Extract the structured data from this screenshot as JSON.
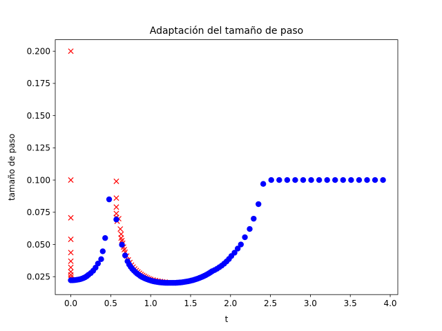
{
  "chart_data": {
    "type": "scatter",
    "title": "Adaptación del tamaño de paso",
    "xlabel": "t",
    "ylabel": "tamaño de paso",
    "xlim": [
      -0.195,
      4.095
    ],
    "ylim": [
      0.0111,
      0.2089
    ],
    "xticks": [
      0.0,
      0.5,
      1.0,
      1.5,
      2.0,
      2.5,
      3.0,
      3.5,
      4.0
    ],
    "xtick_labels": [
      "0.0",
      "0.5",
      "1.0",
      "1.5",
      "2.0",
      "2.5",
      "3.0",
      "3.5",
      "4.0"
    ],
    "yticks": [
      0.025,
      0.05,
      0.075,
      0.1,
      0.125,
      0.15,
      0.175,
      0.2
    ],
    "ytick_labels": [
      "0.025",
      "0.050",
      "0.075",
      "0.100",
      "0.125",
      "0.150",
      "0.175",
      "0.200"
    ],
    "grid": false,
    "colors": {
      "accepted": "#0000ff",
      "rejected": "#ff0000"
    },
    "series": [
      {
        "marker": "x",
        "color": "#ff0000",
        "points": [
          [
            0.0,
            0.2
          ],
          [
            0.0,
            0.1
          ],
          [
            0.0,
            0.0707
          ],
          [
            0.0,
            0.054
          ],
          [
            0.0,
            0.0437
          ],
          [
            0.0,
            0.037
          ],
          [
            0.0,
            0.0322
          ],
          [
            0.0,
            0.0288
          ],
          [
            0.0,
            0.0264
          ],
          [
            0.0,
            0.0245
          ],
          [
            0.0,
            0.0232
          ],
          [
            0.01,
            0.0226
          ],
          [
            0.57,
            0.099
          ],
          [
            0.57,
            0.086
          ],
          [
            0.57,
            0.079
          ],
          [
            0.57,
            0.074
          ],
          [
            0.57,
            0.071
          ],
          [
            0.58,
            0.068
          ],
          [
            0.6,
            0.07
          ],
          [
            0.62,
            0.062
          ],
          [
            0.63,
            0.058
          ],
          [
            0.63,
            0.055
          ],
          [
            0.64,
            0.053
          ],
          [
            0.65,
            0.051
          ],
          [
            0.66,
            0.048
          ],
          [
            0.67,
            0.046
          ],
          [
            0.68,
            0.044
          ],
          [
            0.7,
            0.041
          ],
          [
            0.72,
            0.038
          ],
          [
            0.74,
            0.036
          ],
          [
            0.76,
            0.034
          ],
          [
            0.78,
            0.0325
          ],
          [
            0.8,
            0.031
          ],
          [
            0.82,
            0.0298
          ],
          [
            0.84,
            0.0287
          ],
          [
            0.86,
            0.0277
          ],
          [
            0.88,
            0.0268
          ],
          [
            0.9,
            0.026
          ],
          [
            0.92,
            0.0253
          ],
          [
            0.94,
            0.0246
          ],
          [
            0.96,
            0.024
          ],
          [
            0.98,
            0.0234
          ],
          [
            1.0,
            0.0229
          ],
          [
            1.03,
            0.0224
          ],
          [
            1.06,
            0.022
          ],
          [
            1.09,
            0.0216
          ],
          [
            1.12,
            0.0213
          ],
          [
            1.15,
            0.021
          ],
          [
            1.18,
            0.0208
          ]
        ]
      },
      {
        "marker": "o",
        "color": "#0000ff",
        "points": [
          [
            0.0,
            0.0222
          ],
          [
            0.02,
            0.0222
          ],
          [
            0.04,
            0.0223
          ],
          [
            0.06,
            0.0224
          ],
          [
            0.08,
            0.0226
          ],
          [
            0.1,
            0.0228
          ],
          [
            0.12,
            0.0231
          ],
          [
            0.14,
            0.0235
          ],
          [
            0.16,
            0.024
          ],
          [
            0.18,
            0.0246
          ],
          [
            0.2,
            0.0254
          ],
          [
            0.22,
            0.0264
          ],
          [
            0.25,
            0.0278
          ],
          [
            0.28,
            0.0296
          ],
          [
            0.31,
            0.032
          ],
          [
            0.34,
            0.0352
          ],
          [
            0.38,
            0.0386
          ],
          [
            0.4,
            0.0447
          ],
          [
            0.43,
            0.055
          ],
          [
            0.48,
            0.085
          ],
          [
            0.57,
            0.0694
          ],
          [
            0.64,
            0.0498
          ],
          [
            0.68,
            0.0415
          ],
          [
            0.71,
            0.037
          ],
          [
            0.73,
            0.0345
          ],
          [
            0.75,
            0.0326
          ],
          [
            0.77,
            0.031
          ],
          [
            0.79,
            0.0297
          ],
          [
            0.81,
            0.0285
          ],
          [
            0.83,
            0.0274
          ],
          [
            0.85,
            0.0265
          ],
          [
            0.87,
            0.0256
          ],
          [
            0.89,
            0.0248
          ],
          [
            0.91,
            0.0242
          ],
          [
            0.93,
            0.0236
          ],
          [
            0.95,
            0.0231
          ],
          [
            0.97,
            0.0226
          ],
          [
            0.99,
            0.0222
          ],
          [
            1.01,
            0.0218
          ],
          [
            1.03,
            0.0215
          ],
          [
            1.05,
            0.0212
          ],
          [
            1.07,
            0.021
          ],
          [
            1.09,
            0.0208
          ],
          [
            1.11,
            0.0206
          ],
          [
            1.13,
            0.0205
          ],
          [
            1.15,
            0.0204
          ],
          [
            1.17,
            0.0203
          ],
          [
            1.19,
            0.0202
          ],
          [
            1.21,
            0.0202
          ],
          [
            1.23,
            0.0202
          ],
          [
            1.25,
            0.0202
          ],
          [
            1.27,
            0.0202
          ],
          [
            1.29,
            0.0202
          ],
          [
            1.31,
            0.0202
          ],
          [
            1.33,
            0.0203
          ],
          [
            1.35,
            0.0204
          ],
          [
            1.37,
            0.0205
          ],
          [
            1.39,
            0.0206
          ],
          [
            1.41,
            0.0208
          ],
          [
            1.43,
            0.021
          ],
          [
            1.45,
            0.0212
          ],
          [
            1.47,
            0.0214
          ],
          [
            1.49,
            0.0217
          ],
          [
            1.51,
            0.022
          ],
          [
            1.53,
            0.0223
          ],
          [
            1.55,
            0.0227
          ],
          [
            1.57,
            0.0231
          ],
          [
            1.59,
            0.0235
          ],
          [
            1.61,
            0.024
          ],
          [
            1.63,
            0.0245
          ],
          [
            1.65,
            0.025
          ],
          [
            1.67,
            0.0256
          ],
          [
            1.69,
            0.0262
          ],
          [
            1.71,
            0.0269
          ],
          [
            1.73,
            0.0276
          ],
          [
            1.75,
            0.0284
          ],
          [
            1.77,
            0.0292
          ],
          [
            1.8,
            0.0301
          ],
          [
            1.83,
            0.0311
          ],
          [
            1.86,
            0.0323
          ],
          [
            1.89,
            0.0336
          ],
          [
            1.92,
            0.0351
          ],
          [
            1.95,
            0.0368
          ],
          [
            1.98,
            0.0387
          ],
          [
            2.01,
            0.041
          ],
          [
            2.05,
            0.0436
          ],
          [
            2.09,
            0.0468
          ],
          [
            2.13,
            0.05
          ],
          [
            2.18,
            0.0556
          ],
          [
            2.24,
            0.062
          ],
          [
            2.29,
            0.07
          ],
          [
            2.35,
            0.0813
          ],
          [
            2.41,
            0.097
          ],
          [
            2.51,
            0.1
          ],
          [
            2.61,
            0.1
          ],
          [
            2.71,
            0.1
          ],
          [
            2.81,
            0.1
          ],
          [
            2.91,
            0.1
          ],
          [
            3.01,
            0.1
          ],
          [
            3.11,
            0.1
          ],
          [
            3.21,
            0.1
          ],
          [
            3.31,
            0.1
          ],
          [
            3.41,
            0.1
          ],
          [
            3.51,
            0.1
          ],
          [
            3.61,
            0.1
          ],
          [
            3.71,
            0.1
          ],
          [
            3.81,
            0.1
          ],
          [
            3.91,
            0.1
          ]
        ]
      }
    ]
  }
}
